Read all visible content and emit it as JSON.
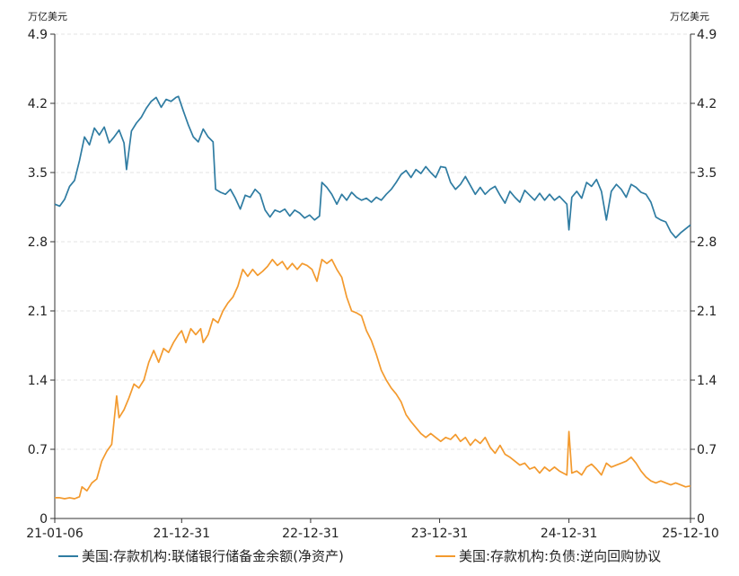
{
  "chart_data": {
    "type": "line",
    "left_unit": "万亿美元",
    "right_unit": "万亿美元",
    "ylim": [
      0,
      4.9
    ],
    "y_ticks": [
      "0",
      "0.7",
      "1.4",
      "2.1",
      "2.8",
      "3.5",
      "4.2",
      "4.9"
    ],
    "xlim": [
      "2021-01-06",
      "2025-12-10"
    ],
    "x_ticks": [
      {
        "label": "21-01-06",
        "date": "2021-01-06"
      },
      {
        "label": "21-12-31",
        "date": "2021-12-31"
      },
      {
        "label": "22-12-31",
        "date": "2022-12-31"
      },
      {
        "label": "23-12-31",
        "date": "2023-12-31"
      },
      {
        "label": "24-12-31",
        "date": "2024-12-31"
      },
      {
        "label": "25-12-10",
        "date": "2025-12-10"
      }
    ],
    "grid": "horizontal dashed",
    "legend_position": "bottom",
    "series": [
      {
        "name": "美国:存款机构:联储银行储备金余额(净资产)",
        "color": "#2f7ca2",
        "points": [
          [
            "2021-01-06",
            3.18
          ],
          [
            "2021-01-20",
            3.16
          ],
          [
            "2021-02-03",
            3.23
          ],
          [
            "2021-02-17",
            3.36
          ],
          [
            "2021-03-03",
            3.42
          ],
          [
            "2021-03-17",
            3.62
          ],
          [
            "2021-03-31",
            3.86
          ],
          [
            "2021-04-14",
            3.78
          ],
          [
            "2021-04-28",
            3.95
          ],
          [
            "2021-05-12",
            3.88
          ],
          [
            "2021-05-26",
            3.96
          ],
          [
            "2021-06-09",
            3.8
          ],
          [
            "2021-06-23",
            3.86
          ],
          [
            "2021-07-07",
            3.93
          ],
          [
            "2021-07-21",
            3.8
          ],
          [
            "2021-07-28",
            3.53
          ],
          [
            "2021-08-11",
            3.92
          ],
          [
            "2021-08-25",
            4.0
          ],
          [
            "2021-09-08",
            4.06
          ],
          [
            "2021-09-22",
            4.15
          ],
          [
            "2021-10-06",
            4.22
          ],
          [
            "2021-10-20",
            4.26
          ],
          [
            "2021-11-03",
            4.16
          ],
          [
            "2021-11-17",
            4.24
          ],
          [
            "2021-12-01",
            4.22
          ],
          [
            "2021-12-15",
            4.26
          ],
          [
            "2021-12-22",
            4.27
          ],
          [
            "2022-01-05",
            4.12
          ],
          [
            "2022-01-19",
            3.98
          ],
          [
            "2022-02-02",
            3.86
          ],
          [
            "2022-02-16",
            3.81
          ],
          [
            "2022-03-02",
            3.94
          ],
          [
            "2022-03-16",
            3.86
          ],
          [
            "2022-03-30",
            3.81
          ],
          [
            "2022-04-06",
            3.33
          ],
          [
            "2022-04-20",
            3.3
          ],
          [
            "2022-05-04",
            3.28
          ],
          [
            "2022-05-18",
            3.33
          ],
          [
            "2022-06-01",
            3.24
          ],
          [
            "2022-06-15",
            3.13
          ],
          [
            "2022-06-29",
            3.27
          ],
          [
            "2022-07-13",
            3.25
          ],
          [
            "2022-07-27",
            3.33
          ],
          [
            "2022-08-10",
            3.28
          ],
          [
            "2022-08-24",
            3.12
          ],
          [
            "2022-09-07",
            3.05
          ],
          [
            "2022-09-21",
            3.12
          ],
          [
            "2022-10-05",
            3.1
          ],
          [
            "2022-10-19",
            3.13
          ],
          [
            "2022-11-02",
            3.06
          ],
          [
            "2022-11-16",
            3.12
          ],
          [
            "2022-11-30",
            3.09
          ],
          [
            "2022-12-14",
            3.04
          ],
          [
            "2022-12-28",
            3.07
          ],
          [
            "2023-01-11",
            3.02
          ],
          [
            "2023-01-25",
            3.06
          ],
          [
            "2023-02-01",
            3.4
          ],
          [
            "2023-02-15",
            3.35
          ],
          [
            "2023-03-01",
            3.28
          ],
          [
            "2023-03-15",
            3.18
          ],
          [
            "2023-03-29",
            3.28
          ],
          [
            "2023-04-12",
            3.22
          ],
          [
            "2023-04-26",
            3.3
          ],
          [
            "2023-05-10",
            3.25
          ],
          [
            "2023-05-24",
            3.22
          ],
          [
            "2023-06-07",
            3.24
          ],
          [
            "2023-06-21",
            3.2
          ],
          [
            "2023-07-05",
            3.25
          ],
          [
            "2023-07-19",
            3.22
          ],
          [
            "2023-08-02",
            3.28
          ],
          [
            "2023-08-16",
            3.33
          ],
          [
            "2023-08-30",
            3.4
          ],
          [
            "2023-09-13",
            3.48
          ],
          [
            "2023-09-27",
            3.52
          ],
          [
            "2023-10-11",
            3.45
          ],
          [
            "2023-10-25",
            3.53
          ],
          [
            "2023-11-08",
            3.49
          ],
          [
            "2023-11-22",
            3.56
          ],
          [
            "2023-12-06",
            3.5
          ],
          [
            "2023-12-20",
            3.45
          ],
          [
            "2024-01-03",
            3.56
          ],
          [
            "2024-01-17",
            3.55
          ],
          [
            "2024-01-31",
            3.4
          ],
          [
            "2024-02-14",
            3.33
          ],
          [
            "2024-02-28",
            3.38
          ],
          [
            "2024-03-13",
            3.46
          ],
          [
            "2024-03-27",
            3.37
          ],
          [
            "2024-04-10",
            3.28
          ],
          [
            "2024-04-24",
            3.35
          ],
          [
            "2024-05-08",
            3.28
          ],
          [
            "2024-05-22",
            3.33
          ],
          [
            "2024-06-05",
            3.36
          ],
          [
            "2024-06-19",
            3.27
          ],
          [
            "2024-07-03",
            3.19
          ],
          [
            "2024-07-17",
            3.31
          ],
          [
            "2024-07-31",
            3.25
          ],
          [
            "2024-08-14",
            3.2
          ],
          [
            "2024-08-28",
            3.32
          ],
          [
            "2024-09-11",
            3.27
          ],
          [
            "2024-09-25",
            3.22
          ],
          [
            "2024-10-09",
            3.29
          ],
          [
            "2024-10-23",
            3.22
          ],
          [
            "2024-11-06",
            3.28
          ],
          [
            "2024-11-20",
            3.22
          ],
          [
            "2024-12-04",
            3.26
          ],
          [
            "2024-12-25",
            3.18
          ],
          [
            "2024-12-31",
            2.92
          ],
          [
            "2025-01-08",
            3.25
          ],
          [
            "2025-01-22",
            3.31
          ],
          [
            "2025-02-05",
            3.24
          ],
          [
            "2025-02-19",
            3.4
          ],
          [
            "2025-03-05",
            3.36
          ],
          [
            "2025-03-19",
            3.43
          ],
          [
            "2025-04-02",
            3.31
          ],
          [
            "2025-04-16",
            3.02
          ],
          [
            "2025-04-30",
            3.31
          ],
          [
            "2025-05-14",
            3.38
          ],
          [
            "2025-05-28",
            3.33
          ],
          [
            "2025-06-11",
            3.25
          ],
          [
            "2025-06-25",
            3.38
          ],
          [
            "2025-07-09",
            3.35
          ],
          [
            "2025-07-23",
            3.3
          ],
          [
            "2025-08-06",
            3.28
          ],
          [
            "2025-08-20",
            3.2
          ],
          [
            "2025-09-03",
            3.05
          ],
          [
            "2025-09-17",
            3.02
          ],
          [
            "2025-10-01",
            3.0
          ],
          [
            "2025-10-15",
            2.9
          ],
          [
            "2025-10-29",
            2.84
          ],
          [
            "2025-11-12",
            2.89
          ],
          [
            "2025-11-26",
            2.93
          ],
          [
            "2025-12-10",
            2.97
          ]
        ]
      },
      {
        "name": "美国:存款机构:负债:逆向回购协议",
        "color": "#f39a2e",
        "points": [
          [
            "2021-01-06",
            0.21
          ],
          [
            "2021-01-20",
            0.21
          ],
          [
            "2021-02-03",
            0.2
          ],
          [
            "2021-02-17",
            0.21
          ],
          [
            "2021-03-03",
            0.2
          ],
          [
            "2021-03-17",
            0.22
          ],
          [
            "2021-03-24",
            0.32
          ],
          [
            "2021-04-07",
            0.28
          ],
          [
            "2021-04-21",
            0.36
          ],
          [
            "2021-05-05",
            0.4
          ],
          [
            "2021-05-19",
            0.58
          ],
          [
            "2021-06-02",
            0.68
          ],
          [
            "2021-06-16",
            0.75
          ],
          [
            "2021-06-30",
            1.24
          ],
          [
            "2021-07-07",
            1.02
          ],
          [
            "2021-07-21",
            1.1
          ],
          [
            "2021-08-04",
            1.22
          ],
          [
            "2021-08-18",
            1.36
          ],
          [
            "2021-09-01",
            1.32
          ],
          [
            "2021-09-15",
            1.4
          ],
          [
            "2021-09-29",
            1.58
          ],
          [
            "2021-10-13",
            1.7
          ],
          [
            "2021-10-27",
            1.58
          ],
          [
            "2021-11-10",
            1.72
          ],
          [
            "2021-11-24",
            1.68
          ],
          [
            "2021-12-08",
            1.78
          ],
          [
            "2021-12-22",
            1.86
          ],
          [
            "2021-12-31",
            1.9
          ],
          [
            "2022-01-12",
            1.78
          ],
          [
            "2022-01-26",
            1.92
          ],
          [
            "2022-02-09",
            1.86
          ],
          [
            "2022-02-23",
            1.92
          ],
          [
            "2022-03-02",
            1.78
          ],
          [
            "2022-03-16",
            1.86
          ],
          [
            "2022-03-30",
            2.02
          ],
          [
            "2022-04-13",
            1.98
          ],
          [
            "2022-04-27",
            2.1
          ],
          [
            "2022-05-11",
            2.18
          ],
          [
            "2022-05-25",
            2.24
          ],
          [
            "2022-06-08",
            2.35
          ],
          [
            "2022-06-22",
            2.52
          ],
          [
            "2022-07-06",
            2.45
          ],
          [
            "2022-07-20",
            2.52
          ],
          [
            "2022-08-03",
            2.46
          ],
          [
            "2022-08-17",
            2.5
          ],
          [
            "2022-08-31",
            2.55
          ],
          [
            "2022-09-14",
            2.62
          ],
          [
            "2022-09-28",
            2.56
          ],
          [
            "2022-10-12",
            2.6
          ],
          [
            "2022-10-26",
            2.52
          ],
          [
            "2022-11-09",
            2.58
          ],
          [
            "2022-11-23",
            2.52
          ],
          [
            "2022-12-07",
            2.58
          ],
          [
            "2022-12-21",
            2.56
          ],
          [
            "2023-01-04",
            2.52
          ],
          [
            "2023-01-18",
            2.4
          ],
          [
            "2023-02-01",
            2.62
          ],
          [
            "2023-02-15",
            2.58
          ],
          [
            "2023-03-01",
            2.62
          ],
          [
            "2023-03-15",
            2.52
          ],
          [
            "2023-03-29",
            2.44
          ],
          [
            "2023-04-12",
            2.24
          ],
          [
            "2023-04-26",
            2.1
          ],
          [
            "2023-05-10",
            2.08
          ],
          [
            "2023-05-24",
            2.05
          ],
          [
            "2023-06-07",
            1.9
          ],
          [
            "2023-06-21",
            1.8
          ],
          [
            "2023-07-05",
            1.66
          ],
          [
            "2023-07-19",
            1.5
          ],
          [
            "2023-08-02",
            1.4
          ],
          [
            "2023-08-16",
            1.32
          ],
          [
            "2023-08-30",
            1.26
          ],
          [
            "2023-09-13",
            1.18
          ],
          [
            "2023-09-27",
            1.05
          ],
          [
            "2023-10-11",
            0.98
          ],
          [
            "2023-10-25",
            0.92
          ],
          [
            "2023-11-08",
            0.86
          ],
          [
            "2023-11-22",
            0.82
          ],
          [
            "2023-12-06",
            0.86
          ],
          [
            "2023-12-20",
            0.82
          ],
          [
            "2024-01-03",
            0.78
          ],
          [
            "2024-01-17",
            0.82
          ],
          [
            "2024-01-31",
            0.8
          ],
          [
            "2024-02-14",
            0.85
          ],
          [
            "2024-02-28",
            0.78
          ],
          [
            "2024-03-13",
            0.82
          ],
          [
            "2024-03-27",
            0.74
          ],
          [
            "2024-04-10",
            0.8
          ],
          [
            "2024-04-24",
            0.76
          ],
          [
            "2024-05-08",
            0.82
          ],
          [
            "2024-05-22",
            0.72
          ],
          [
            "2024-06-05",
            0.66
          ],
          [
            "2024-06-19",
            0.74
          ],
          [
            "2024-07-03",
            0.65
          ],
          [
            "2024-07-17",
            0.62
          ],
          [
            "2024-07-31",
            0.58
          ],
          [
            "2024-08-14",
            0.54
          ],
          [
            "2024-08-28",
            0.56
          ],
          [
            "2024-09-11",
            0.5
          ],
          [
            "2024-09-25",
            0.52
          ],
          [
            "2024-10-09",
            0.46
          ],
          [
            "2024-10-23",
            0.52
          ],
          [
            "2024-11-06",
            0.48
          ],
          [
            "2024-11-20",
            0.52
          ],
          [
            "2024-12-04",
            0.48
          ],
          [
            "2024-12-25",
            0.44
          ],
          [
            "2024-12-31",
            0.88
          ],
          [
            "2025-01-08",
            0.46
          ],
          [
            "2025-01-22",
            0.48
          ],
          [
            "2025-02-05",
            0.44
          ],
          [
            "2025-02-19",
            0.52
          ],
          [
            "2025-03-05",
            0.55
          ],
          [
            "2025-03-19",
            0.5
          ],
          [
            "2025-04-02",
            0.44
          ],
          [
            "2025-04-16",
            0.56
          ],
          [
            "2025-04-30",
            0.52
          ],
          [
            "2025-05-14",
            0.54
          ],
          [
            "2025-05-28",
            0.56
          ],
          [
            "2025-06-11",
            0.58
          ],
          [
            "2025-06-25",
            0.62
          ],
          [
            "2025-07-09",
            0.56
          ],
          [
            "2025-07-23",
            0.48
          ],
          [
            "2025-08-06",
            0.42
          ],
          [
            "2025-08-20",
            0.38
          ],
          [
            "2025-09-03",
            0.36
          ],
          [
            "2025-09-17",
            0.38
          ],
          [
            "2025-10-01",
            0.36
          ],
          [
            "2025-10-15",
            0.34
          ],
          [
            "2025-10-29",
            0.36
          ],
          [
            "2025-11-12",
            0.34
          ],
          [
            "2025-11-26",
            0.32
          ],
          [
            "2025-12-10",
            0.33
          ]
        ]
      }
    ]
  }
}
